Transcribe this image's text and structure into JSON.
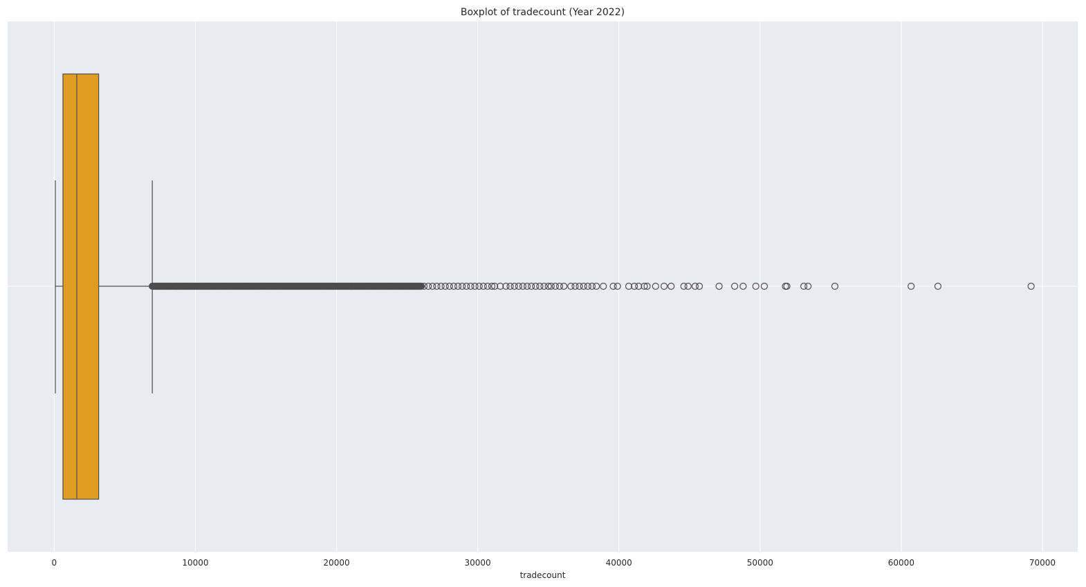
{
  "chart_data": {
    "type": "box",
    "title": "Boxplot of tradecount (Year 2022)",
    "xlabel": "tradecount",
    "ylabel": "",
    "xlim": [
      -3300,
      72500
    ],
    "xticks": [
      0,
      10000,
      20000,
      30000,
      40000,
      50000,
      60000,
      70000
    ],
    "xtick_labels": [
      "0",
      "10000",
      "20000",
      "30000",
      "40000",
      "50000",
      "60000",
      "70000"
    ],
    "orientation": "horizontal",
    "grid": true,
    "colors": {
      "background": "#eaeaf2",
      "grid": "#ffffff",
      "box_fill": "#e19d22",
      "lines": "#4d4d4d"
    },
    "box": {
      "whisker_low": 80,
      "q1": 620,
      "median": 1600,
      "q3": 3150,
      "whisker_high": 6950
    },
    "outliers": {
      "dense_range": [
        6950,
        26000
      ],
      "points": [
        26200,
        26500,
        26800,
        27100,
        27400,
        27700,
        28000,
        28300,
        28600,
        28900,
        29200,
        29500,
        29800,
        30100,
        30400,
        30700,
        31000,
        31200,
        31600,
        32000,
        32300,
        32600,
        32900,
        33200,
        33500,
        33800,
        34100,
        34400,
        34700,
        35000,
        35200,
        35500,
        35800,
        36100,
        36600,
        36900,
        37200,
        37500,
        37800,
        38100,
        38400,
        38900,
        39600,
        39900,
        40700,
        41100,
        41400,
        41800,
        42000,
        42600,
        43200,
        43700,
        44600,
        44900,
        45400,
        45700,
        47100,
        48200,
        48800,
        49700,
        50300,
        51800,
        51900,
        53100,
        53400,
        55300,
        60700,
        62600,
        69200
      ]
    }
  }
}
